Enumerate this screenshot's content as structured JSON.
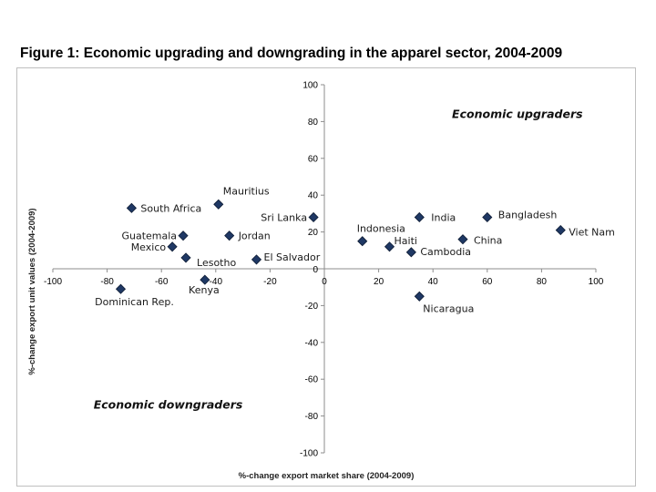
{
  "chart_data": {
    "type": "scatter",
    "title": "Figure 1: Economic upgrading and downgrading in the apparel sector, 2004-2009",
    "xlabel": "%-change export market share (2004-2009)",
    "ylabel": "%-change export unit values (2004-2009)",
    "xlim": [
      -100,
      100
    ],
    "ylim": [
      -100,
      100
    ],
    "xticks": [
      -100,
      -80,
      -60,
      -40,
      -20,
      0,
      20,
      40,
      60,
      80,
      100
    ],
    "yticks": [
      -100,
      -80,
      -60,
      -40,
      -20,
      0,
      20,
      40,
      60,
      80,
      100
    ],
    "marker_color": "#1f3864",
    "annotations": [
      {
        "text": "Economic upgraders",
        "x": 47,
        "y": 82
      },
      {
        "text": "Economic downgraders",
        "x": -85,
        "y": -76
      }
    ],
    "points": [
      {
        "name": "South Africa",
        "x": -71,
        "y": 33
      },
      {
        "name": "Mauritius",
        "x": -39,
        "y": 35
      },
      {
        "name": "Sri Lanka",
        "x": -4,
        "y": 28
      },
      {
        "name": "Guatemala",
        "x": -52,
        "y": 18
      },
      {
        "name": "Jordan",
        "x": -35,
        "y": 18
      },
      {
        "name": "Mexico",
        "x": -56,
        "y": 12
      },
      {
        "name": "Lesotho",
        "x": -51,
        "y": 6
      },
      {
        "name": "El Salvador",
        "x": -25,
        "y": 5
      },
      {
        "name": "Kenya",
        "x": -44,
        "y": -6
      },
      {
        "name": "Dominican Rep.",
        "x": -75,
        "y": -11
      },
      {
        "name": "India",
        "x": 35,
        "y": 28
      },
      {
        "name": "Bangladesh",
        "x": 60,
        "y": 28
      },
      {
        "name": "Viet Nam",
        "x": 87,
        "y": 21
      },
      {
        "name": "Indonesia",
        "x": 14,
        "y": 15
      },
      {
        "name": "Haiti",
        "x": 24,
        "y": 12
      },
      {
        "name": "Cambodia",
        "x": 32,
        "y": 9
      },
      {
        "name": "China",
        "x": 51,
        "y": 16
      },
      {
        "name": "Nicaragua",
        "x": 35,
        "y": -15
      }
    ]
  }
}
